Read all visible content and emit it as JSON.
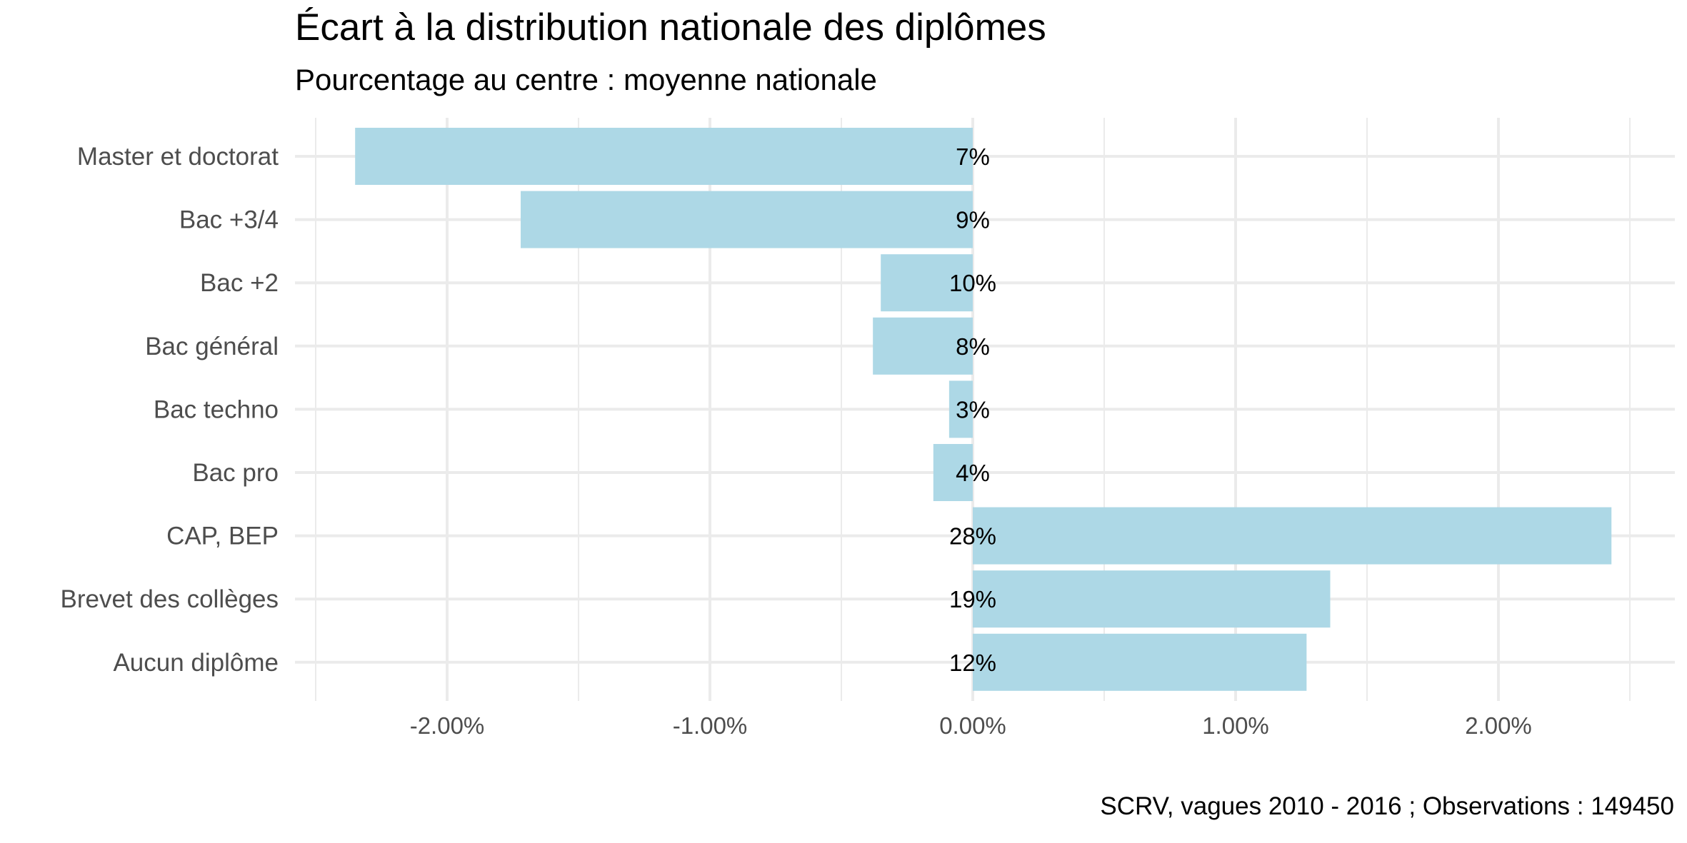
{
  "chart_data": {
    "type": "bar",
    "orientation": "horizontal",
    "title": "Écart à la distribution nationale des diplômes",
    "subtitle": "Pourcentage au centre : moyenne nationale",
    "caption": "SCRV, vagues 2010 - 2016 ; Observations : 149450",
    "categories": [
      "Master et doctorat",
      "Bac +3/4",
      "Bac +2",
      "Bac général",
      "Bac techno",
      "Bac pro",
      "CAP, BEP",
      "Brevet des collèges",
      "Aucun diplôme"
    ],
    "values": [
      -2.35,
      -1.72,
      -0.35,
      -0.38,
      -0.09,
      -0.15,
      2.43,
      1.36,
      1.27
    ],
    "data_labels": [
      "7%",
      "9%",
      "10%",
      "8%",
      "3%",
      "4%",
      "28%",
      "19%",
      "12%"
    ],
    "xticks": [
      -2,
      -1,
      0,
      1,
      2
    ],
    "xtick_labels": [
      "-2.00%",
      "-1.00%",
      "0.00%",
      "1.00%",
      "2.00%"
    ],
    "xlim": [
      -2.5,
      2.6
    ],
    "xlabel": "",
    "ylabel": "",
    "grid": true,
    "bar_color": "#add8e6",
    "grid_color": "#ebebeb"
  }
}
